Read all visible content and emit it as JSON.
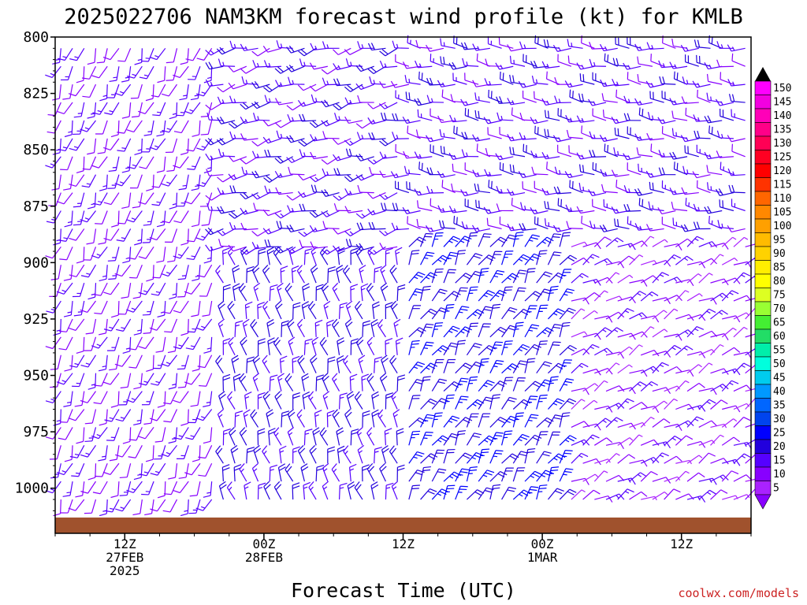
{
  "chart_data": {
    "type": "wind-barb-time-height",
    "title": "2025022706 NAM3KM forecast wind profile (kt) for KMLB",
    "xlabel": "Forecast Time (UTC)",
    "ylabel": "",
    "y_scale": "pressure (hPa), inverted",
    "ylim": [
      1020,
      800
    ],
    "y_ticks": [
      "800",
      "825",
      "850",
      "875",
      "900",
      "925",
      "950",
      "975",
      "1000"
    ],
    "x_ticks": [
      {
        "hour": 6,
        "lines": [
          "12Z",
          "27FEB",
          "2025"
        ]
      },
      {
        "hour": 18,
        "lines": [
          "00Z",
          "28FEB"
        ]
      },
      {
        "hour": 30,
        "lines": [
          "12Z"
        ]
      },
      {
        "hour": 42,
        "lines": [
          "00Z",
          "1MAR"
        ]
      },
      {
        "hour": 54,
        "lines": [
          "12Z"
        ]
      }
    ],
    "x_range_hours": [
      0,
      60
    ],
    "x_interval_hours": 2,
    "surface_pressure_hpa": 1013,
    "colorbar": {
      "labels": [
        "150",
        "145",
        "140",
        "135",
        "130",
        "125",
        "120",
        "115",
        "110",
        "105",
        "100",
        "95",
        "90",
        "85",
        "80",
        "75",
        "70",
        "65",
        "60",
        "55",
        "50",
        "45",
        "40",
        "35",
        "30",
        "25",
        "20",
        "15",
        "10",
        "5"
      ],
      "colors": [
        "#ff00ff",
        "#f200e0",
        "#ff00b8",
        "#ff0088",
        "#ff0055",
        "#ff0022",
        "#ff0000",
        "#ff3300",
        "#ff6600",
        "#ff8800",
        "#ffa000",
        "#ffbb00",
        "#ffd200",
        "#ffee00",
        "#ffff00",
        "#ddff22",
        "#99ff33",
        "#44ee33",
        "#22dd66",
        "#00eeaa",
        "#00ffdd",
        "#00ccee",
        "#0099ff",
        "#0066ff",
        "#0044ee",
        "#0000ff",
        "#2200dd",
        "#5500ff",
        "#8800ff",
        "#aa22ff"
      ]
    },
    "wind_regimes": [
      {
        "t_start": 0,
        "t_end": 14,
        "p_top": 800,
        "p_bot": 1013,
        "dir_deg": 200,
        "speed_kt": 12
      },
      {
        "t_start": 14,
        "t_end": 30,
        "p_top": 800,
        "p_bot": 900,
        "dir_deg": 255,
        "speed_kt": 15
      },
      {
        "t_start": 14,
        "t_end": 30,
        "p_top": 900,
        "p_bot": 1013,
        "dir_deg": 345,
        "speed_kt": 18
      },
      {
        "t_start": 30,
        "t_end": 60,
        "p_top": 800,
        "p_bot": 890,
        "dir_deg": 275,
        "speed_kt": 15
      },
      {
        "t_start": 30,
        "t_end": 44,
        "p_top": 890,
        "p_bot": 1013,
        "dir_deg": 30,
        "speed_kt": 22
      },
      {
        "t_start": 44,
        "t_end": 60,
        "p_top": 890,
        "p_bot": 1013,
        "dir_deg": 60,
        "speed_kt": 10
      }
    ]
  },
  "credit": "coolwx.com/models"
}
